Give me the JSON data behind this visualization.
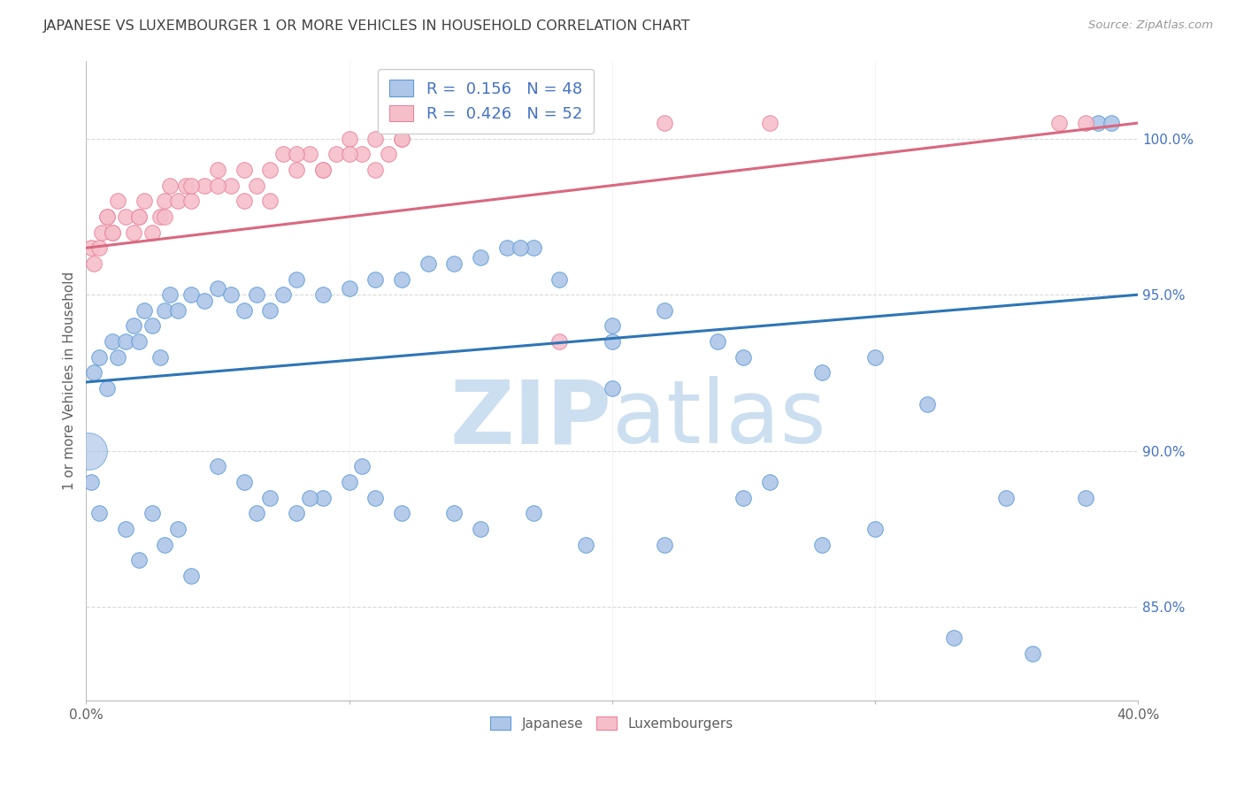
{
  "title": "JAPANESE VS LUXEMBOURGER 1 OR MORE VEHICLES IN HOUSEHOLD CORRELATION CHART",
  "source": "Source: ZipAtlas.com",
  "ylabel": "1 or more Vehicles in Household",
  "ytick_labels": [
    "85.0%",
    "90.0%",
    "95.0%",
    "100.0%"
  ],
  "ytick_values": [
    85.0,
    90.0,
    95.0,
    100.0
  ],
  "xlim": [
    0.0,
    40.0
  ],
  "ylim": [
    82.0,
    102.5
  ],
  "legend_blue_R": "0.156",
  "legend_blue_N": "48",
  "legend_pink_R": "0.426",
  "legend_pink_N": "52",
  "legend_labels": [
    "Japanese",
    "Luxembourgers"
  ],
  "blue_color": "#aec6e8",
  "pink_color": "#f5bfca",
  "blue_edge_color": "#5b9bd5",
  "pink_edge_color": "#e8829a",
  "blue_line_color": "#2e75b6",
  "pink_line_color": "#d96880",
  "background_color": "#ffffff",
  "grid_color": "#c0c0c0",
  "title_color": "#404040",
  "axis_label_color": "#606060",
  "ytick_color": "#4472c4",
  "blue_scatter_x": [
    0.3,
    0.5,
    0.8,
    1.0,
    1.2,
    1.5,
    1.8,
    2.0,
    2.2,
    2.5,
    2.8,
    3.0,
    3.2,
    3.5,
    4.0,
    4.5,
    5.0,
    5.5,
    6.0,
    6.5,
    7.0,
    7.5,
    8.0,
    9.0,
    10.0,
    11.0,
    12.0,
    13.0,
    14.0,
    15.0,
    16.0,
    17.0,
    18.0,
    20.0,
    22.0,
    24.0,
    25.0,
    28.0,
    30.0,
    32.0,
    35.0,
    20.0,
    26.0,
    10.5,
    0.2,
    38.5,
    39.0,
    16.5
  ],
  "blue_scatter_y": [
    92.5,
    93.0,
    92.0,
    93.5,
    93.0,
    93.5,
    94.0,
    93.5,
    94.5,
    94.0,
    93.0,
    94.5,
    95.0,
    94.5,
    95.0,
    94.8,
    95.2,
    95.0,
    94.5,
    95.0,
    94.5,
    95.0,
    95.5,
    95.0,
    95.2,
    95.5,
    95.5,
    96.0,
    96.0,
    96.2,
    96.5,
    96.5,
    95.5,
    94.0,
    94.5,
    93.5,
    93.0,
    92.5,
    93.0,
    91.5,
    88.5,
    92.0,
    89.0,
    89.5,
    89.0,
    100.5,
    100.5,
    96.5
  ],
  "blue_scatter_x2": [
    2.5,
    3.5,
    5.0,
    6.0,
    7.0,
    8.0,
    9.0,
    10.0,
    12.0,
    15.0,
    20.0,
    25.0,
    30.0,
    38.0,
    4.0,
    14.0,
    22.0,
    0.5,
    1.5,
    2.0,
    3.0,
    6.5,
    8.5,
    11.0,
    17.0,
    19.0,
    28.0,
    33.0,
    36.0
  ],
  "blue_scatter_y2": [
    88.0,
    87.5,
    89.5,
    89.0,
    88.5,
    88.0,
    88.5,
    89.0,
    88.0,
    87.5,
    93.5,
    88.5,
    87.5,
    88.5,
    86.0,
    88.0,
    87.0,
    88.0,
    87.5,
    86.5,
    87.0,
    88.0,
    88.5,
    88.5,
    88.0,
    87.0,
    87.0,
    84.0,
    83.5
  ],
  "pink_scatter_x": [
    0.2,
    0.3,
    0.5,
    0.6,
    0.8,
    1.0,
    1.2,
    1.5,
    1.8,
    2.0,
    2.2,
    2.5,
    2.8,
    3.0,
    3.2,
    3.5,
    3.8,
    4.0,
    4.5,
    5.0,
    5.5,
    6.0,
    6.5,
    7.0,
    7.5,
    8.0,
    8.5,
    9.0,
    9.5,
    10.0,
    10.5,
    11.0,
    11.5,
    12.0,
    1.0,
    2.0,
    3.0,
    4.0,
    5.0,
    6.0,
    7.0,
    8.0,
    9.0,
    10.0,
    11.0,
    12.0,
    18.0,
    22.0,
    37.0,
    38.0,
    26.0,
    0.8
  ],
  "pink_scatter_y": [
    96.5,
    96.0,
    96.5,
    97.0,
    97.5,
    97.0,
    98.0,
    97.5,
    97.0,
    97.5,
    98.0,
    97.0,
    97.5,
    98.0,
    98.5,
    98.0,
    98.5,
    98.0,
    98.5,
    99.0,
    98.5,
    99.0,
    98.5,
    99.0,
    99.5,
    99.0,
    99.5,
    99.0,
    99.5,
    100.0,
    99.5,
    100.0,
    99.5,
    100.0,
    97.0,
    97.5,
    97.5,
    98.5,
    98.5,
    98.0,
    98.0,
    99.5,
    99.0,
    99.5,
    99.0,
    100.0,
    93.5,
    100.5,
    100.5,
    100.5,
    100.5,
    97.5
  ],
  "blue_trend_x": [
    0.0,
    40.0
  ],
  "blue_trend_y": [
    92.2,
    95.0
  ],
  "pink_trend_x": [
    0.0,
    40.0
  ],
  "pink_trend_y": [
    96.5,
    100.5
  ],
  "watermark_zip": "ZIP",
  "watermark_atlas": "atlas",
  "watermark_color": "#ccdff0"
}
